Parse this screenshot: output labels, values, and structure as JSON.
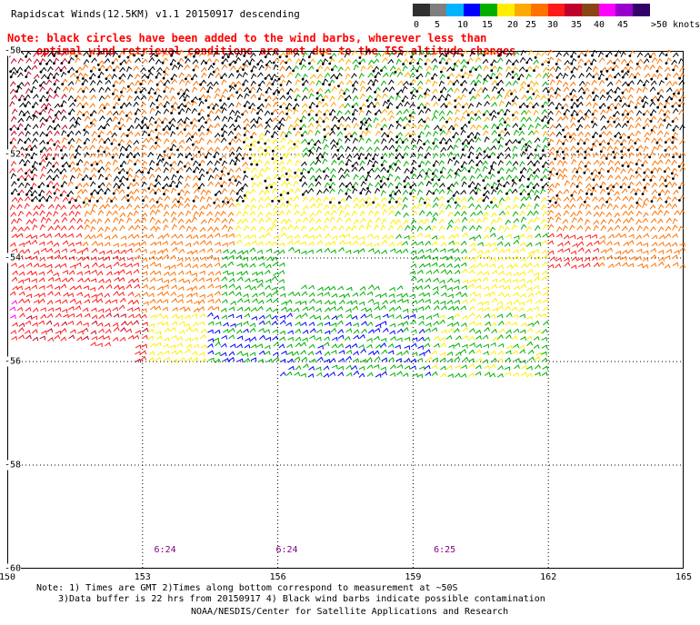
{
  "title": "Rapidscat Winds(12.5KM) v1.1 20150917 descending",
  "note": {
    "line1": "Note: black circles have been added to the wind barbs, wherever less than",
    "line2": "optimal wind retrieval conditions are met due to the ISS altitude changes"
  },
  "scale": {
    "colors": [
      "#303030",
      "#7f7f7f",
      "#00b4ff",
      "#0000ff",
      "#00b000",
      "#ffee00",
      "#ffaa00",
      "#ff7200",
      "#ff1a1a",
      "#c0002a",
      "#8b4513",
      "#ff00ff",
      "#9900cc",
      "#33006a"
    ],
    "labels": [
      "0",
      "5",
      "10",
      "15",
      "20",
      "25",
      "30",
      "35",
      "40",
      "45",
      ">50 knots"
    ]
  },
  "axes": {
    "x_ticks": [
      "150",
      "153",
      "156",
      "159",
      "162",
      "165"
    ],
    "y_ticks": [
      "-50",
      "-52",
      "-54",
      "-56",
      "-58",
      "-60"
    ]
  },
  "map": {
    "lon_range": [
      150,
      165
    ],
    "lat_range": [
      -60,
      -50
    ],
    "time_labels": [
      {
        "text": "6:24",
        "lon": 153.5
      },
      {
        "text": "6:24",
        "lon": 156.2
      },
      {
        "text": "6:25",
        "lon": 159.7
      }
    ],
    "barb_colors": {
      "black": "#000000",
      "red": "#ff1a1a",
      "dark_red": "#c0002a",
      "orange": "#ff7200",
      "light_orange": "#ffaa00",
      "yellow": "#ffee00",
      "green": "#00b000",
      "blue": "#0000ff",
      "magenta": "#ff00ff"
    }
  },
  "footer": {
    "line1": "Note: 1) Times are GMT 2)Times along bottom correspond to measurement at ~50S",
    "line2": "3)Data buffer is 22 hrs from 20150917 4) Black wind barbs indicate possible contamination",
    "line3": "NOAA/NESDIS/Center for Satellite Applications and Research"
  }
}
